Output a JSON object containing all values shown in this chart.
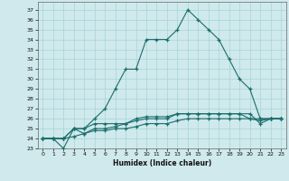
{
  "title": "",
  "xlabel": "Humidex (Indice chaleur)",
  "ylabel": "",
  "background_color": "#cfe9ec",
  "line_color": "#1a6e6a",
  "grid_color": "#a8d4d8",
  "xlim": [
    -0.5,
    23.5
  ],
  "ylim": [
    23,
    37.8
  ],
  "xticks": [
    0,
    1,
    2,
    3,
    4,
    5,
    6,
    7,
    8,
    9,
    10,
    11,
    12,
    13,
    14,
    15,
    16,
    17,
    18,
    19,
    20,
    21,
    22,
    23
  ],
  "yticks": [
    23,
    24,
    25,
    26,
    27,
    28,
    29,
    30,
    31,
    32,
    33,
    34,
    35,
    36,
    37
  ],
  "series": [
    {
      "x": [
        0,
        1,
        2,
        3,
        4,
        5,
        6,
        7,
        8,
        9,
        10,
        11,
        12,
        13,
        14,
        15,
        16,
        17,
        18,
        19,
        20,
        21,
        22,
        23
      ],
      "y": [
        24,
        24,
        23,
        25,
        25,
        26,
        27,
        29,
        31,
        31,
        34,
        34,
        34,
        35,
        37,
        36,
        35,
        34,
        32,
        30,
        29,
        26,
        26,
        26
      ]
    },
    {
      "x": [
        0,
        1,
        2,
        3,
        4,
        5,
        6,
        7,
        8,
        9,
        10,
        11,
        12,
        13,
        14,
        15,
        16,
        17,
        18,
        19,
        20,
        21,
        22,
        23
      ],
      "y": [
        24,
        24,
        24,
        25,
        24.5,
        25,
        25,
        25.2,
        25.5,
        25.8,
        26,
        26,
        26,
        26.5,
        26.5,
        26.5,
        26.5,
        26.5,
        26.5,
        26.5,
        26,
        25.8,
        26,
        26
      ]
    },
    {
      "x": [
        0,
        1,
        2,
        3,
        4,
        5,
        6,
        7,
        8,
        9,
        10,
        11,
        12,
        13,
        14,
        15,
        16,
        17,
        18,
        19,
        20,
        21,
        22,
        23
      ],
      "y": [
        24,
        24,
        24,
        24.2,
        24.5,
        24.8,
        24.8,
        25,
        25,
        25.2,
        25.5,
        25.5,
        25.5,
        25.8,
        26,
        26,
        26,
        26,
        26,
        26,
        26,
        26,
        26,
        26
      ]
    },
    {
      "x": [
        0,
        1,
        2,
        3,
        4,
        5,
        6,
        7,
        8,
        9,
        10,
        11,
        12,
        13,
        14,
        15,
        16,
        17,
        18,
        19,
        20,
        21,
        22,
        23
      ],
      "y": [
        24,
        24,
        24,
        25,
        25,
        25.5,
        25.5,
        25.5,
        25.5,
        26,
        26.2,
        26.2,
        26.2,
        26.5,
        26.5,
        26.5,
        26.5,
        26.5,
        26.5,
        26.5,
        26.5,
        25.5,
        26,
        26
      ]
    }
  ]
}
